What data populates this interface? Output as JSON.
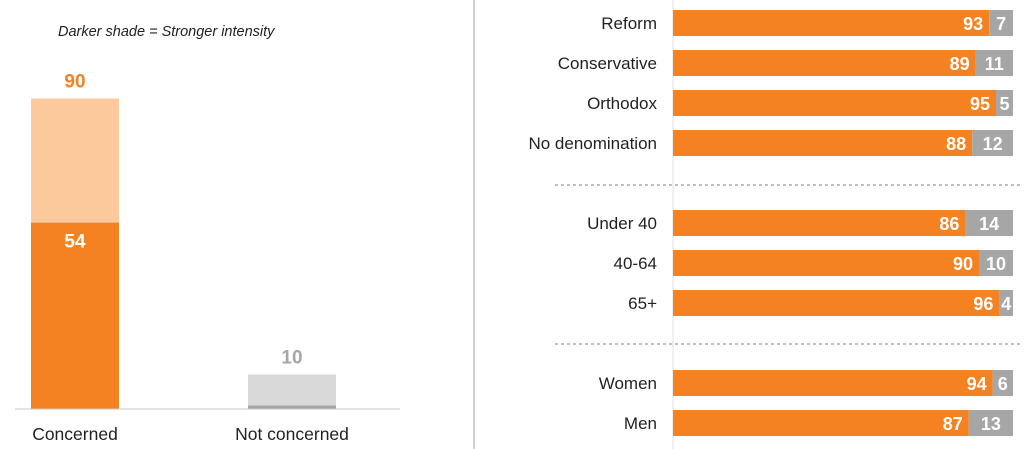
{
  "colors": {
    "concerned_strong": "#f58220",
    "concerned_light": "#fcc99d",
    "not_concerned": "#d9d9d9",
    "not_concerned_strong": "#a6a6a6",
    "bar_orange": "#f58220",
    "bar_gray": "#a6a6a6",
    "text": "#231f20",
    "gray_label": "#a6a6a6",
    "white_label": "#ffffff"
  },
  "chart_data": [
    {
      "type": "bar",
      "note": "Darker shade = Stronger intensity",
      "categories": [
        "Concerned",
        "Not concerned"
      ],
      "bars": [
        {
          "category": "Concerned",
          "total": 90,
          "strong": 54,
          "total_label": "90",
          "strong_label": "54"
        },
        {
          "category": "Not concerned",
          "total": 10,
          "strong": 1,
          "total_label": "10",
          "strong_label": ""
        }
      ],
      "ylim": [
        0,
        100
      ]
    },
    {
      "type": "bar",
      "orientation": "horizontal-stacked",
      "xlim": [
        0,
        100
      ],
      "groups": [
        {
          "rows": [
            {
              "label": "Reform",
              "orange": 93,
              "gray": 7,
              "orange_label": "93",
              "gray_label": "7"
            },
            {
              "label": "Conservative",
              "orange": 89,
              "gray": 11,
              "orange_label": "89",
              "gray_label": "11"
            },
            {
              "label": "Orthodox",
              "orange": 95,
              "gray": 5,
              "orange_label": "95",
              "gray_label": "5"
            },
            {
              "label": "No denomination",
              "orange": 88,
              "gray": 12,
              "orange_label": "88",
              "gray_label": "12"
            }
          ]
        },
        {
          "rows": [
            {
              "label": "Under 40",
              "orange": 86,
              "gray": 14,
              "orange_label": "86",
              "gray_label": "14"
            },
            {
              "label": "40-64",
              "orange": 90,
              "gray": 10,
              "orange_label": "90",
              "gray_label": "10"
            },
            {
              "label": "65+",
              "orange": 96,
              "gray": 4,
              "orange_label": "96",
              "gray_label": "4"
            }
          ]
        },
        {
          "rows": [
            {
              "label": "Women",
              "orange": 94,
              "gray": 6,
              "orange_label": "94",
              "gray_label": "6"
            },
            {
              "label": "Men",
              "orange": 87,
              "gray": 13,
              "orange_label": "87",
              "gray_label": "13"
            }
          ]
        }
      ]
    }
  ]
}
